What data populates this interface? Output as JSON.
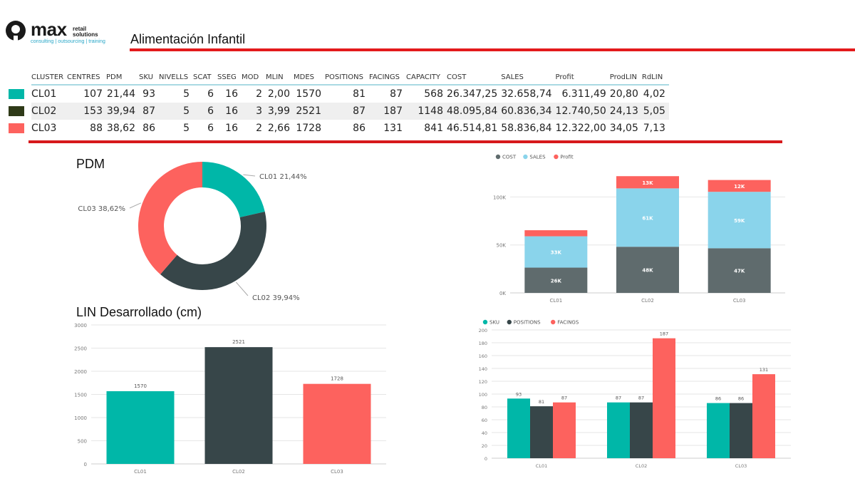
{
  "header": {
    "logo_word": "max",
    "logo_sub1": "retail",
    "logo_sub2": "solutions",
    "logo_tagline": "consulting | outsourcing | training",
    "title": "Alimentación Infantil"
  },
  "colors": {
    "CL01": "#00b7a8",
    "CL02": "#374649",
    "CL03": "#fd625e",
    "accent_rule": "#e31a1c",
    "sales": "#8ad4eb"
  },
  "table": {
    "columns": [
      "CLUSTER",
      "CENTRES",
      "PDM",
      "SKU",
      "NIVELLS",
      "SCAT",
      "SSEG",
      "MOD",
      "MLIN",
      "MDES",
      "POSITIONS",
      "FACINGS",
      "CAPACITY",
      "COST",
      "SALES",
      "Profit",
      "ProdLIN",
      "RdLIN"
    ],
    "rows": [
      {
        "color": "#00b7a8",
        "cells": [
          "CL01",
          "107",
          "21,44",
          "93",
          "5",
          "6",
          "16",
          "2",
          "2,00",
          "1570",
          "81",
          "87",
          "568",
          "26.347,25",
          "32.658,74",
          "6.311,49",
          "20,80",
          "4,02"
        ]
      },
      {
        "color": "#2f3a18",
        "cells": [
          "CL02",
          "153",
          "39,94",
          "87",
          "5",
          "6",
          "16",
          "3",
          "3,99",
          "2521",
          "87",
          "187",
          "1148",
          "48.095,84",
          "60.836,34",
          "12.740,50",
          "24,13",
          "5,05"
        ]
      },
      {
        "color": "#fd625e",
        "cells": [
          "CL03",
          "88",
          "38,62",
          "86",
          "5",
          "6",
          "16",
          "2",
          "2,66",
          "1728",
          "86",
          "131",
          "841",
          "46.514,81",
          "58.836,84",
          "12.322,00",
          "34,05",
          "7,13"
        ]
      }
    ]
  },
  "chart_data": [
    {
      "id": "pdm",
      "type": "pie",
      "title": "PDM",
      "labels": [
        "CL01",
        "CL02",
        "CL03"
      ],
      "values": [
        21.44,
        39.94,
        38.62
      ],
      "data_labels": [
        "CL01 21,44%",
        "CL02 39,94%",
        "CL03 38,62%"
      ],
      "colors": [
        "#00b7a8",
        "#374649",
        "#fd625e"
      ],
      "donut": true
    },
    {
      "id": "lin",
      "type": "bar",
      "title": "LIN Desarrollado (cm)",
      "categories": [
        "CL01",
        "CL02",
        "CL03"
      ],
      "values": [
        1570,
        2521,
        1728
      ],
      "data_labels": [
        "1570",
        "2521",
        "1728"
      ],
      "colors": [
        "#00b7a8",
        "#374649",
        "#fd625e"
      ],
      "ylim": [
        0,
        3000
      ],
      "yticks": [
        0,
        500,
        1000,
        1500,
        2000,
        2500,
        3000
      ],
      "ytick_labels": [
        "0",
        "500",
        "1000",
        "1500",
        "2000",
        "2500",
        "3000"
      ],
      "grid": true
    },
    {
      "id": "cost-sales-profit",
      "type": "bar",
      "stacked": true,
      "categories": [
        "CL01",
        "CL02",
        "CL03"
      ],
      "series": [
        {
          "name": "COST",
          "color": "#5f6b6d",
          "values": [
            26347.25,
            48095.84,
            46514.81
          ],
          "data_labels": [
            "26K",
            "48K",
            "47K"
          ]
        },
        {
          "name": "SALES",
          "color": "#8ad4eb",
          "values": [
            32658.74,
            60836.34,
            58836.84
          ],
          "data_labels": [
            "33K",
            "61K",
            "59K"
          ]
        },
        {
          "name": "Profit",
          "color": "#fd625e",
          "values": [
            6311.49,
            12740.5,
            12322.0
          ],
          "data_labels": [
            "",
            "13K",
            "12K"
          ]
        }
      ],
      "ylim": [
        0,
        130000
      ],
      "yticks": [
        0,
        50000,
        100000
      ],
      "ytick_labels": [
        "0K",
        "50K",
        "100K"
      ],
      "legend": "top-left",
      "grid": true
    },
    {
      "id": "sku-positions-facings",
      "type": "bar",
      "categories": [
        "CL01",
        "CL02",
        "CL03"
      ],
      "series": [
        {
          "name": "SKU",
          "color": "#00b7a8",
          "values": [
            93,
            87,
            86
          ]
        },
        {
          "name": "POSITIONS",
          "color": "#374649",
          "values": [
            81,
            87,
            86
          ]
        },
        {
          "name": "FACINGS",
          "color": "#fd625e",
          "values": [
            87,
            187,
            131
          ]
        }
      ],
      "ylim": [
        0,
        200
      ],
      "yticks": [
        0,
        20,
        40,
        60,
        80,
        100,
        120,
        140,
        160,
        180,
        200
      ],
      "ytick_labels": [
        "0",
        "20",
        "40",
        "60",
        "80",
        "100",
        "120",
        "140",
        "160",
        "180",
        "200"
      ],
      "legend": "top-left",
      "grid": true
    }
  ]
}
